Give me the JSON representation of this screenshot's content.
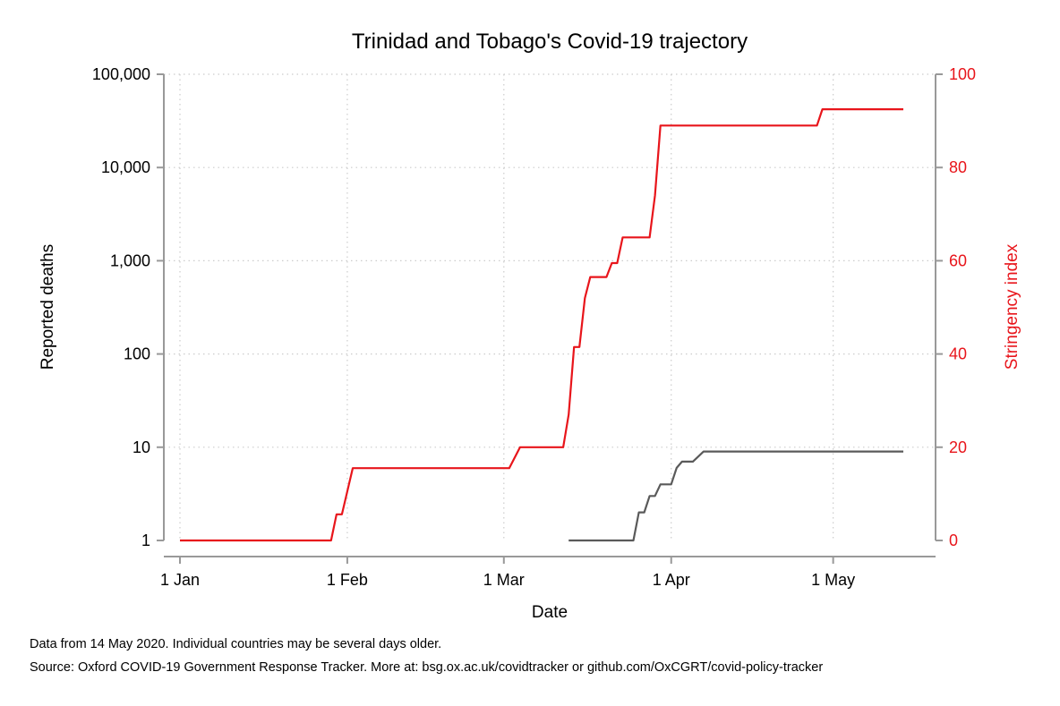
{
  "chart_data": {
    "type": "line",
    "title": "Trinidad and Tobago's Covid-19 trajectory",
    "xlabel": "Date",
    "ylabel": "Reported deaths",
    "y2label": "Stringency index",
    "x_ticks": [
      "2020-01-01",
      "2020-02-01",
      "2020-03-01",
      "2020-04-01",
      "2020-05-01"
    ],
    "x_tick_labels": [
      "1 Jan",
      "1 Feb",
      "1 Mar",
      "1 Apr",
      "1 May"
    ],
    "xlim": [
      "2020-01-01",
      "2020-05-14"
    ],
    "y_scale": "log",
    "ylim": [
      1,
      100000
    ],
    "y_ticks": [
      1,
      10,
      100,
      1000,
      10000,
      100000
    ],
    "y_tick_labels": [
      "1",
      "10",
      "100",
      "1,000",
      "10,000",
      "100,000"
    ],
    "y2lim": [
      0,
      100
    ],
    "y2_ticks": [
      0,
      20,
      40,
      60,
      80,
      100
    ],
    "y2_tick_labels": [
      "0",
      "20",
      "40",
      "60",
      "80",
      "100"
    ],
    "grid": true,
    "colors": {
      "deaths": "#5a5a5a",
      "stringency": "#e8151b"
    },
    "series": [
      {
        "axis": "left",
        "points": [
          [
            "2020-03-13",
            1
          ],
          [
            "2020-03-25",
            1
          ],
          [
            "2020-03-26",
            2
          ],
          [
            "2020-03-27",
            2
          ],
          [
            "2020-03-28",
            3
          ],
          [
            "2020-03-29",
            3
          ],
          [
            "2020-03-30",
            4
          ],
          [
            "2020-04-01",
            4
          ],
          [
            "2020-04-02",
            6
          ],
          [
            "2020-04-03",
            7
          ],
          [
            "2020-04-05",
            7
          ],
          [
            "2020-04-07",
            9
          ],
          [
            "2020-05-14",
            9
          ]
        ]
      },
      {
        "axis": "right",
        "points": [
          [
            "2020-01-01",
            0
          ],
          [
            "2020-01-29",
            0
          ],
          [
            "2020-01-30",
            5.6
          ],
          [
            "2020-01-31",
            5.6
          ],
          [
            "2020-02-02",
            15.5
          ],
          [
            "2020-03-02",
            15.5
          ],
          [
            "2020-03-04",
            20
          ],
          [
            "2020-03-12",
            20
          ],
          [
            "2020-03-13",
            27
          ],
          [
            "2020-03-14",
            41.5
          ],
          [
            "2020-03-15",
            41.5
          ],
          [
            "2020-03-16",
            52
          ],
          [
            "2020-03-17",
            56.5
          ],
          [
            "2020-03-20",
            56.5
          ],
          [
            "2020-03-21",
            59.5
          ],
          [
            "2020-03-22",
            59.5
          ],
          [
            "2020-03-23",
            65
          ],
          [
            "2020-03-28",
            65
          ],
          [
            "2020-03-29",
            74
          ],
          [
            "2020-03-30",
            89
          ],
          [
            "2020-04-28",
            89
          ],
          [
            "2020-04-29",
            92.5
          ],
          [
            "2020-05-14",
            92.5
          ]
        ]
      }
    ]
  },
  "footnotes": {
    "line1": "Data from 14 May 2020. Individual countries may be several days older.",
    "line2": "Source: Oxford COVID-19 Government Response Tracker. More at: bsg.ox.ac.uk/covidtracker or github.com/OxCGRT/covid-policy-tracker"
  }
}
